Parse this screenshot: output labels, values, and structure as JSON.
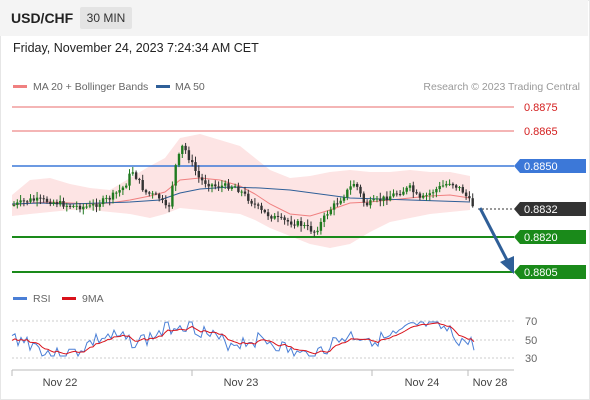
{
  "header": {
    "symbol": "USD/CHF",
    "timeframe": "30 MIN"
  },
  "datetime": "Friday, November 24, 2023 7:24:34 AM CET",
  "legend": {
    "items": [
      {
        "label": "MA 20 + Bollinger Bands",
        "color": "#f08080"
      },
      {
        "label": "MA 50",
        "color": "#2f5f98"
      }
    ],
    "credit": "Research © 2023 Trading Central"
  },
  "levels": [
    {
      "value": "0.8875",
      "style": "red-line"
    },
    {
      "value": "0.8865",
      "style": "red-line"
    },
    {
      "value": "0.8850",
      "style": "blue-badge"
    },
    {
      "value": "0.8832",
      "style": "current-price"
    },
    {
      "value": "0.8820",
      "style": "green-badge"
    },
    {
      "value": "0.8805",
      "style": "green-badge"
    }
  ],
  "rsi_legend": [
    {
      "label": "RSI",
      "color": "#4a7fd6"
    },
    {
      "label": "9MA",
      "color": "#d9121b"
    }
  ],
  "rsi_levels": [
    "70",
    "50",
    "30"
  ],
  "x_axis": [
    "Nov 22",
    "Nov 23",
    "Nov 24",
    "Nov 28"
  ],
  "colors": {
    "up": "#1f7a1f",
    "down": "#333333",
    "bands": "#fde4e4",
    "green": "#1a8a1a",
    "blue": "#3c78d8",
    "red": "#e04848"
  }
}
